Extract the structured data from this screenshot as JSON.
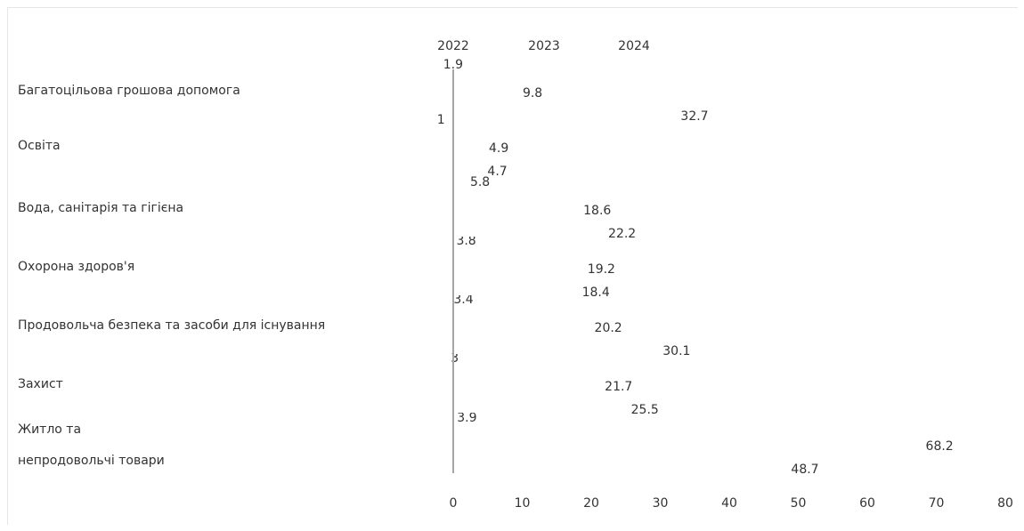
{
  "chart_data": {
    "type": "bar",
    "orientation": "horizontal",
    "categories": [
      "Багатоцільова грошова допомога",
      "Освіта",
      "Вода, санітарія та гігієна",
      "Охорона здоров'я",
      "Продовольча безпека та засоби для існування",
      "Захист",
      "Житло та непродовольчі товари"
    ],
    "category_label_lines": [
      [
        "Багатоцільова грошова допомога"
      ],
      [
        "Освіта"
      ],
      [
        "Вода, санітарія та гігієна"
      ],
      [
        "Охорона здоров'я"
      ],
      [
        "Продовольча безпека та засоби для існування"
      ],
      [
        "Захист"
      ],
      [
        "Житло та",
        "непродовольчі товари"
      ]
    ],
    "series": [
      {
        "name": "2022",
        "values": [
          1.9,
          1,
          5.8,
          3.8,
          3.4,
          3,
          3.9
        ]
      },
      {
        "name": "2023",
        "values": [
          9.8,
          4.9,
          18.6,
          19.2,
          20.2,
          21.7,
          68.2
        ]
      },
      {
        "name": "2024",
        "values": [
          32.7,
          4.7,
          22.2,
          18.4,
          30.1,
          25.5,
          48.7
        ]
      }
    ],
    "data_labels": [
      [
        "1.9",
        "1",
        "5.8",
        "3.8",
        "3.4",
        "3",
        "3.9"
      ],
      [
        "9.8",
        "4.9",
        "18.6",
        "19.2",
        "20.2",
        "21.7",
        "68.2"
      ],
      [
        "32.7",
        "4.7",
        "22.2",
        "18.4",
        "30.1",
        "25.5",
        "48.7"
      ]
    ],
    "xlim": [
      0,
      80
    ],
    "x_ticks": [
      "0",
      "10",
      "20",
      "30",
      "40",
      "50",
      "60",
      "70",
      "80"
    ],
    "legend_position": "top",
    "bar_fill": "#ffffff",
    "axis_color": "#a6a6a6",
    "title": "",
    "xlabel": "",
    "ylabel": "",
    "grid": false
  }
}
